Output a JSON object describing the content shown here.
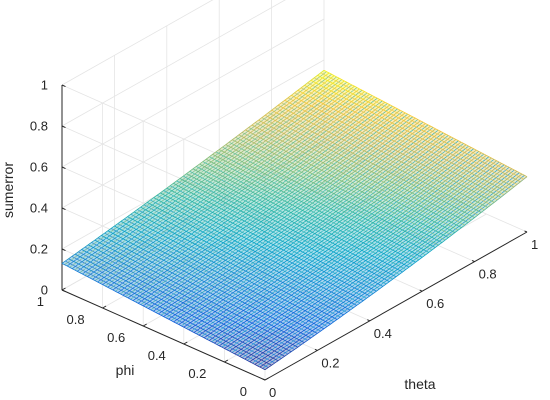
{
  "chart_data": {
    "type": "surface",
    "xlabel": "theta",
    "ylabel": "phi",
    "zlabel": "sumerror",
    "xlim": [
      0,
      1
    ],
    "ylim": [
      0,
      1
    ],
    "zlim": [
      0,
      1
    ],
    "x_ticks": [
      {
        "value": 0,
        "label": "0"
      },
      {
        "value": 0.2,
        "label": "0.2"
      },
      {
        "value": 0.4,
        "label": "0.4"
      },
      {
        "value": 0.6,
        "label": "0.6"
      },
      {
        "value": 0.8,
        "label": "0.8"
      },
      {
        "value": 1,
        "label": "1"
      }
    ],
    "y_ticks": [
      {
        "value": 0,
        "label": "0"
      },
      {
        "value": 0.2,
        "label": "0.2"
      },
      {
        "value": 0.4,
        "label": "0.4"
      },
      {
        "value": 0.6,
        "label": "0.6"
      },
      {
        "value": 0.8,
        "label": "0.8"
      },
      {
        "value": 1,
        "label": "1"
      }
    ],
    "z_ticks": [
      {
        "value": 0,
        "label": "0"
      },
      {
        "value": 0.2,
        "label": "0.2"
      },
      {
        "value": 0.4,
        "label": "0.4"
      },
      {
        "value": 0.6,
        "label": "0.6"
      },
      {
        "value": 0.8,
        "label": "0.8"
      },
      {
        "value": 1,
        "label": "1"
      }
    ],
    "grid": true,
    "colormap": "parula",
    "colors": [
      "#352a87",
      "#0f5cdd",
      "#1481d6",
      "#06a4ca",
      "#2eb7a4",
      "#87bf77",
      "#d1bb59",
      "#fec832",
      "#f9fb0e"
    ],
    "surface": {
      "corner_values": {
        "theta0_phi0": 0.05,
        "theta1_phi0": 0.24,
        "theta0_phi1": 0.13,
        "theta1_phi1": 0.35
      },
      "min_value": 0.05
    }
  }
}
